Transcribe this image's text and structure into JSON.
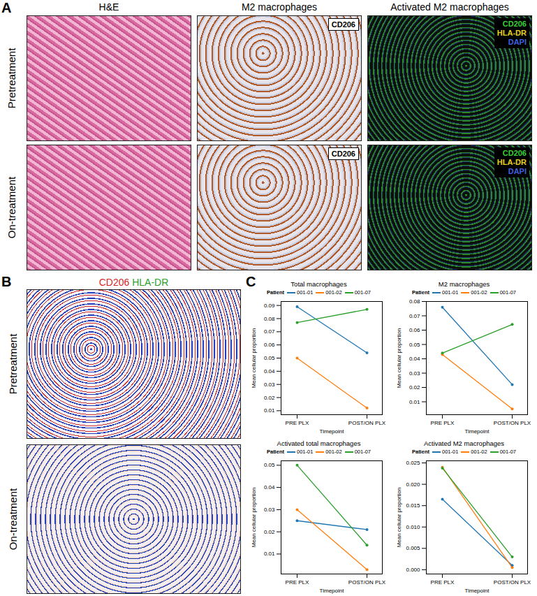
{
  "figure": {
    "panel_a": {
      "label": "A",
      "columns": [
        "H&E",
        "M2 macrophages",
        "Activated M2 macrophages"
      ],
      "rows": [
        "Pretreatment",
        "On-treatment"
      ],
      "ihc_stain": "CD206",
      "if_stains": [
        {
          "name": "CD206",
          "color": "#3ccf3c"
        },
        {
          "name": "HLA-DR",
          "color": "#e8d21e"
        },
        {
          "name": "DAPI",
          "color": "#4060e0"
        }
      ]
    },
    "panel_b": {
      "label": "B",
      "rows": [
        "Pretreatment",
        "On-treatment"
      ],
      "markers": [
        {
          "name": "CD206",
          "color": "#d62728"
        },
        {
          "name": "HLA-DR",
          "color": "#2ca02c"
        }
      ]
    },
    "panel_c": {
      "label": "C"
    }
  },
  "chart_data": [
    {
      "type": "line",
      "title": "Total macrophages",
      "x_label": "Timepoint",
      "y_label": "Mean cellular proportion",
      "legend_title": "Patient",
      "marker": "circle",
      "categories": [
        "PRE PLX",
        "POST/ON PLX"
      ],
      "ylim": [
        0.007,
        0.093
      ],
      "yticks": [
        0.01,
        0.02,
        0.03,
        0.04,
        0.05,
        0.06,
        0.07,
        0.08,
        0.09
      ],
      "series": [
        {
          "name": "001-01",
          "color": "#1f77b4",
          "values": [
            0.089,
            0.054
          ]
        },
        {
          "name": "001-02",
          "color": "#ff7f0e",
          "values": [
            0.05,
            0.012
          ]
        },
        {
          "name": "001-07",
          "color": "#2ca02c",
          "values": [
            0.077,
            0.087
          ]
        }
      ]
    },
    {
      "type": "line",
      "title": "M2 macrophages",
      "x_label": "Timepoint",
      "y_label": "Mean cellular proportion",
      "legend_title": "Patient",
      "marker": "circle",
      "categories": [
        "PRE PLX",
        "POST/ON PLX"
      ],
      "ylim": [
        0.001,
        0.08
      ],
      "yticks": [
        0.01,
        0.02,
        0.03,
        0.04,
        0.05,
        0.06,
        0.07,
        0.08
      ],
      "series": [
        {
          "name": "001-01",
          "color": "#1f77b4",
          "values": [
            0.076,
            0.022
          ]
        },
        {
          "name": "001-02",
          "color": "#ff7f0e",
          "values": [
            0.043,
            0.005
          ]
        },
        {
          "name": "001-07",
          "color": "#2ca02c",
          "values": [
            0.044,
            0.064
          ]
        }
      ]
    },
    {
      "type": "line",
      "title": "Activated total macrophages",
      "x_label": "Timepoint",
      "y_label": "Mean cellular proportion",
      "legend_title": "Patient",
      "marker": "circle",
      "categories": [
        "PRE PLX",
        "POST/ON PLX"
      ],
      "ylim": [
        0.001,
        0.052
      ],
      "yticks": [
        0.01,
        0.02,
        0.03,
        0.04,
        0.05
      ],
      "series": [
        {
          "name": "001-01",
          "color": "#1f77b4",
          "values": [
            0.025,
            0.021
          ]
        },
        {
          "name": "001-02",
          "color": "#ff7f0e",
          "values": [
            0.03,
            0.003
          ]
        },
        {
          "name": "001-07",
          "color": "#2ca02c",
          "values": [
            0.05,
            0.014
          ]
        }
      ]
    },
    {
      "type": "line",
      "title": "Activated M2 macrophages",
      "x_label": "Timepoint",
      "y_label": "Mean cellular proportion",
      "legend_title": "Patient",
      "marker": "circle",
      "categories": [
        "PRE PLX",
        "POST/ON PLX"
      ],
      "ylim": [
        -0.001,
        0.0255
      ],
      "yticks": [
        {
          "value": 0,
          "label": "0.000"
        },
        0.005,
        {
          "value": 0.01,
          "label": "0.010"
        },
        0.015,
        {
          "value": 0.02,
          "label": "0.020"
        },
        0.025
      ],
      "series": [
        {
          "name": "001-01",
          "color": "#1f77b4",
          "values": [
            0.0165,
            0.001
          ]
        },
        {
          "name": "001-02",
          "color": "#ff7f0e",
          "values": [
            0.024,
            0.0005
          ]
        },
        {
          "name": "001-07",
          "color": "#2ca02c",
          "values": [
            0.0238,
            0.003
          ]
        }
      ]
    }
  ]
}
